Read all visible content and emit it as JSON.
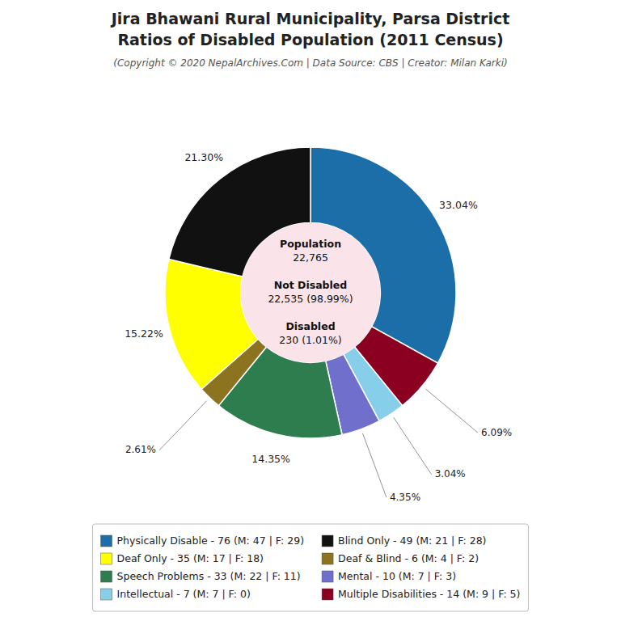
{
  "chart_data": {
    "type": "donut",
    "title": [
      "Jira Bhawani Rural Municipality, Parsa District",
      "Ratios of Disabled Population (2011 Census)"
    ],
    "subtitle": "(Copyright © 2020 NepalArchives.Com | Data Source: CBS | Creator: Milan Karki)",
    "values": [
      33.04,
      6.09,
      3.04,
      4.35,
      14.35,
      2.61,
      15.22,
      21.3
    ],
    "value_labels": [
      "33.04%",
      "6.09%",
      "3.04%",
      "4.35%",
      "14.35%",
      "2.61%",
      "15.22%",
      "21.30%"
    ],
    "colors": [
      "#1b6ea8",
      "#8b0020",
      "#87ceeb",
      "#7070cc",
      "#2e7d4f",
      "#8b7320",
      "#ffff00",
      "#111111"
    ],
    "data_labels": true,
    "annotations": [
      [
        "Population",
        "22,765"
      ],
      [
        "Not Disabled",
        "22,535 (98.99%)"
      ],
      [
        "Disabled",
        "230 (1.01%)"
      ]
    ],
    "legend": "bottom",
    "legend_entries": [
      {
        "label": "Physically Disable - 76 (M: 47 | F: 29)",
        "color": "#1b6ea8"
      },
      {
        "label": "Deaf Only - 35 (M: 17 | F: 18)",
        "color": "#ffff00"
      },
      {
        "label": "Speech Problems - 33 (M: 22 | F: 11)",
        "color": "#2e7d4f"
      },
      {
        "label": "Intellectual - 7 (M: 7 | F: 0)",
        "color": "#87ceeb"
      },
      {
        "label": "Blind Only - 49 (M: 21 | F: 28)",
        "color": "#111111"
      },
      {
        "label": "Deaf & Blind - 6 (M: 4 | F: 2)",
        "color": "#8b7320"
      },
      {
        "label": "Mental - 10 (M: 7 | F: 3)",
        "color": "#7070cc"
      },
      {
        "label": "Multiple Disabilities - 14 (M: 9 | F: 5)",
        "color": "#8b0020"
      }
    ]
  }
}
